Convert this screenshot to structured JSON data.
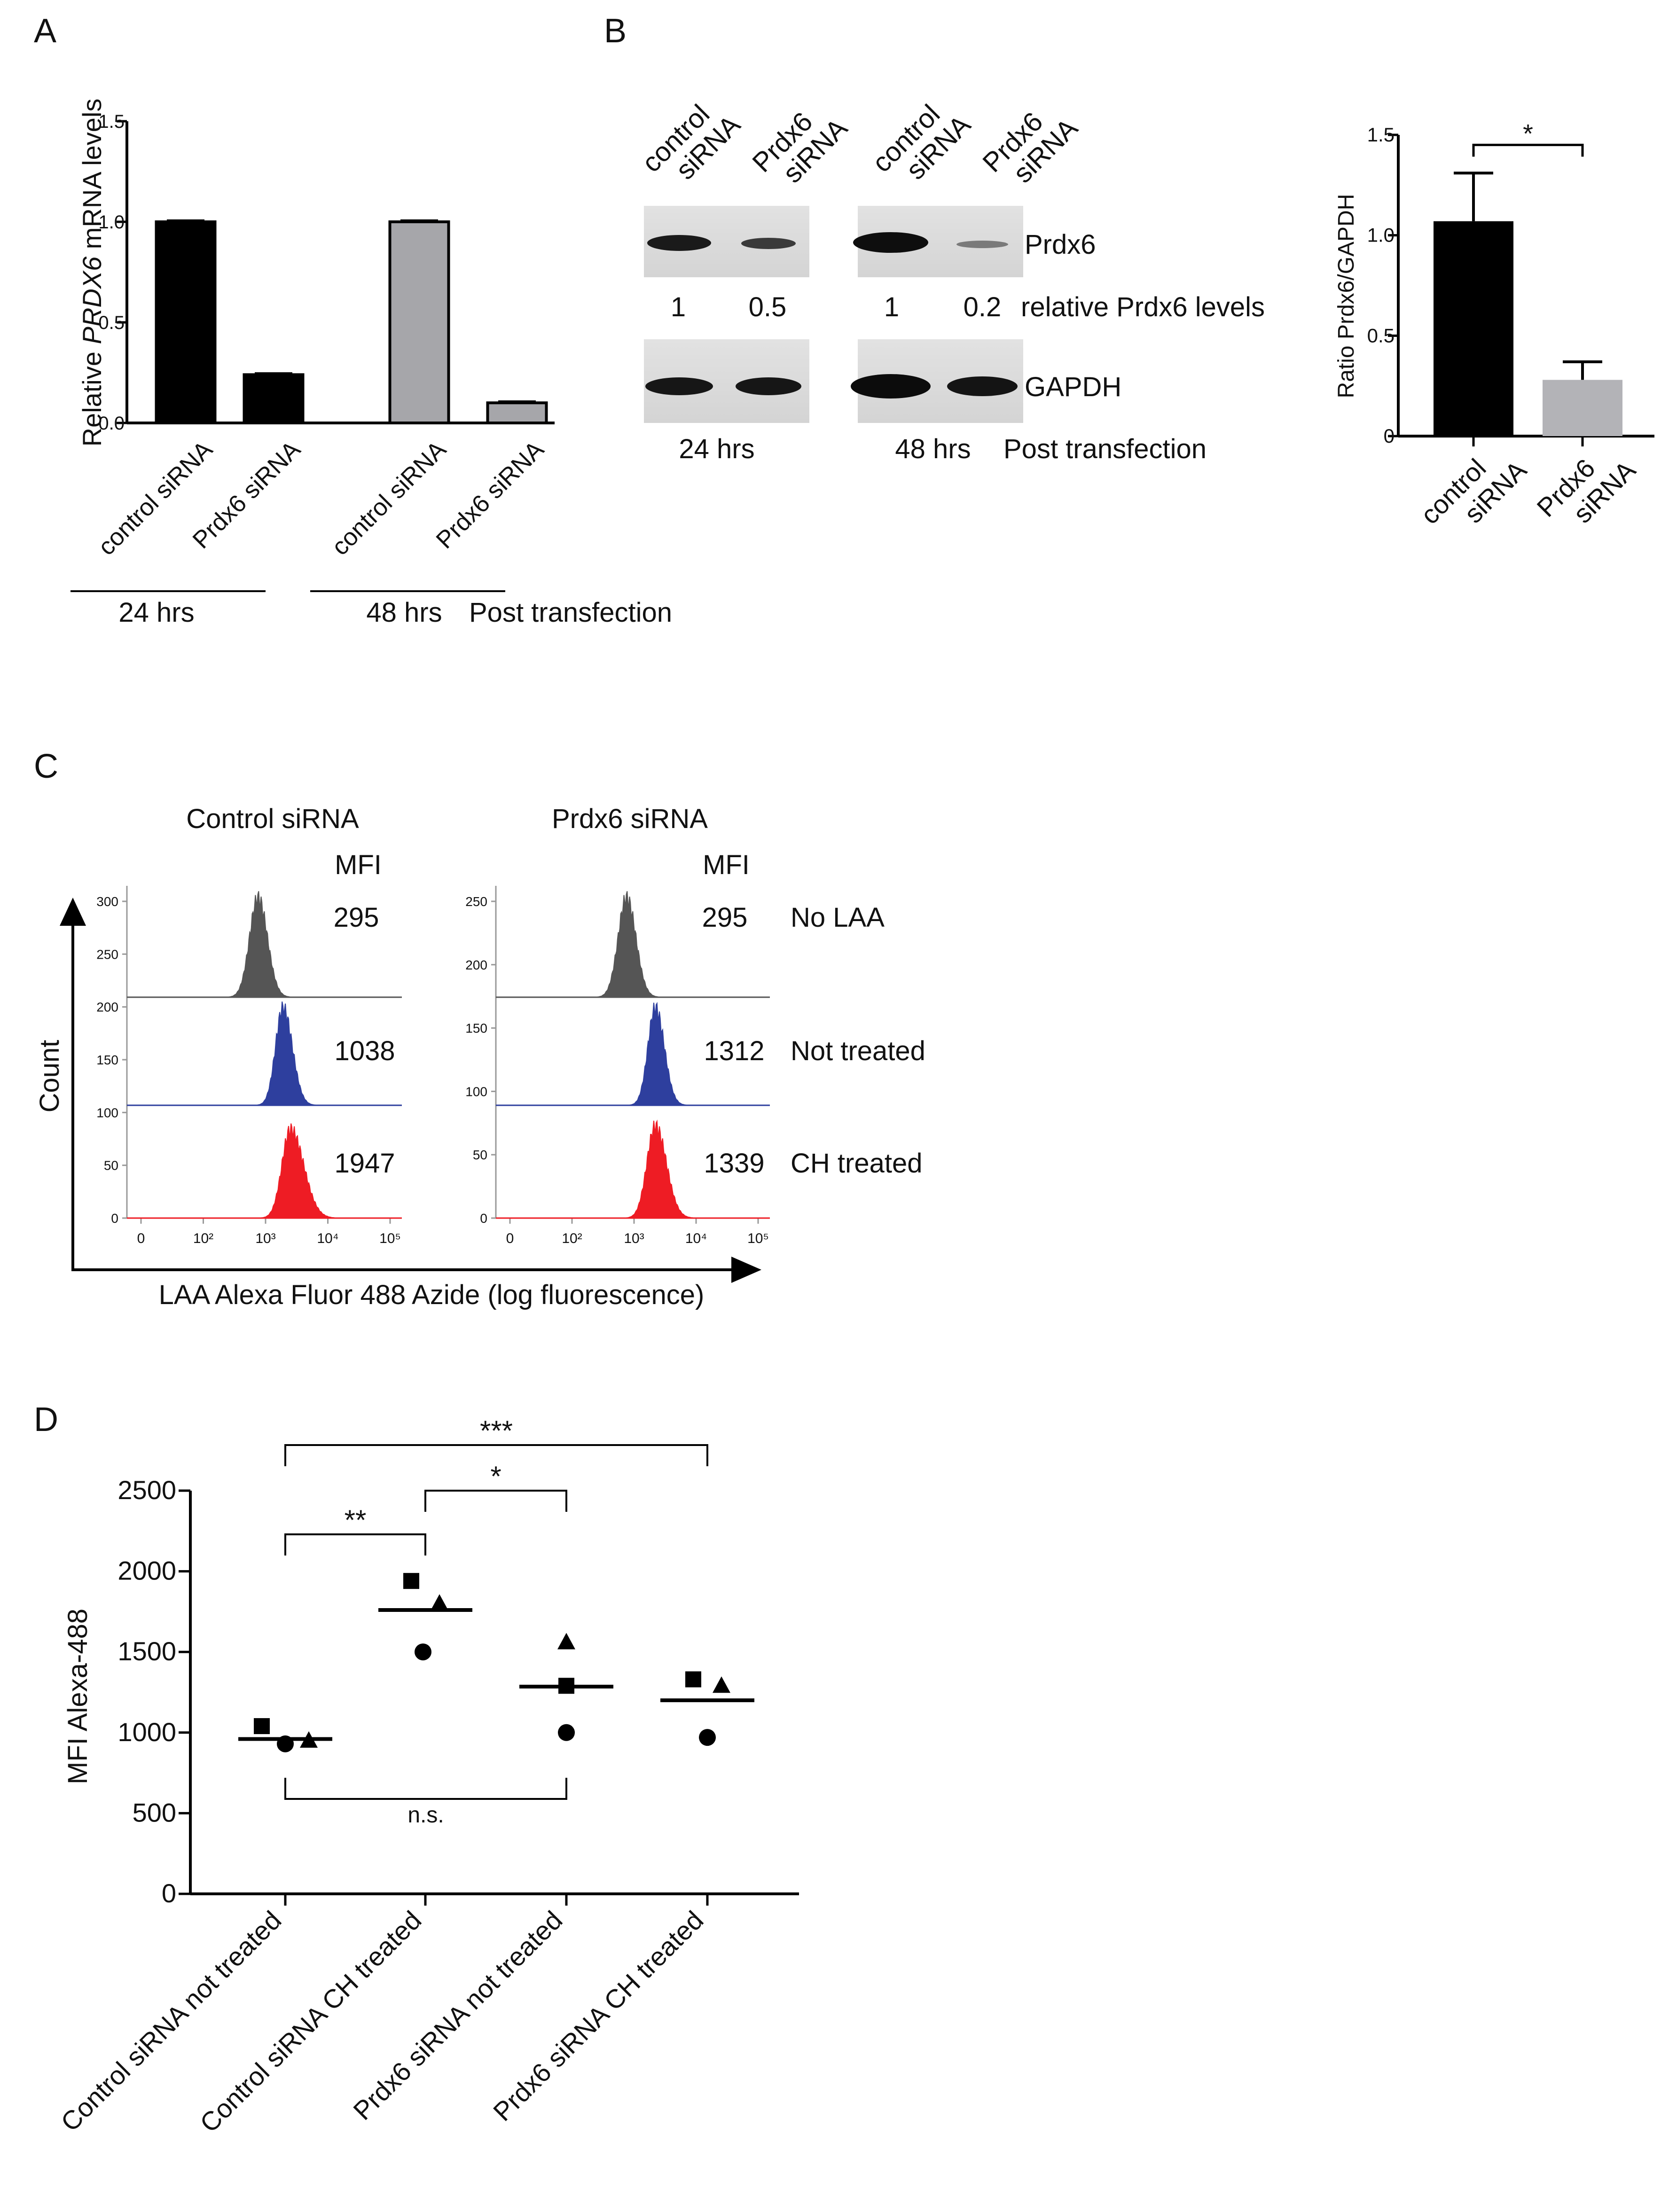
{
  "panels": {
    "a": "A",
    "b": "B",
    "c": "C",
    "d": "D"
  },
  "panel_a": {
    "ylabel_pre": "Relative ",
    "ylabel_gene": "PRDX6",
    "ylabel_post": " mRNA levels",
    "group1": "24 hrs",
    "group2": "48 hrs",
    "post": "Post transfection"
  },
  "panel_b": {
    "lanes": [
      {
        "l1": "control",
        "l2": "siRNA"
      },
      {
        "l1": "Prdx6",
        "l2": "siRNA"
      },
      {
        "l1": "control",
        "l2": "siRNA"
      },
      {
        "l1": "Prdx6",
        "l2": "siRNA"
      }
    ],
    "prdx6_label": "Prdx6",
    "gapdh_label": "GAPDH",
    "relative": [
      "1",
      "0.5",
      "1",
      "0.2"
    ],
    "relative_label": "relative Prdx6 levels",
    "time1": "24 hrs",
    "time2": "48 hrs",
    "post": "Post transfection"
  },
  "panel_c": {
    "titles": [
      "Control siRNA",
      "Prdx6 siRNA"
    ],
    "mfi_label": "MFI",
    "mfi_control": [
      "295",
      "1038",
      "1947"
    ],
    "mfi_prdx6": [
      "295",
      "1312",
      "1339"
    ],
    "row_labels": [
      "No LAA",
      "Not treated",
      "CH treated"
    ],
    "ylabel": "Count",
    "xlabel": "LAA Alexa Fluor 488 Azide (log fluorescence)",
    "left_yticks": [
      "300",
      "250",
      "200",
      "150",
      "100",
      "50",
      "0"
    ],
    "right_yticks": [
      "250",
      "200",
      "150",
      "100",
      "50",
      "0"
    ],
    "xticks": [
      "0",
      "10²",
      "10³",
      "10⁴",
      "10⁵"
    ],
    "colors": {
      "no_laa": "#555555",
      "not_treated": "#2e3f9e",
      "ch_treated": "#ee1c24"
    }
  },
  "chart_data": [
    {
      "type": "bar",
      "id": "A",
      "ylabel": "Relative PRDX6 mRNA levels",
      "categories": [
        "control siRNA",
        "Prdx6 siRNA",
        "control siRNA",
        "Prdx6 siRNA"
      ],
      "groups": [
        "24 hrs",
        "24 hrs",
        "48 hrs",
        "48 hrs"
      ],
      "values": [
        1.0,
        0.24,
        1.0,
        0.1
      ],
      "errors": [
        0.005,
        0.005,
        0.005,
        0.005
      ],
      "colors": [
        "#000000",
        "#000000",
        "#a6a6aa",
        "#a6a6aa"
      ],
      "ylim": [
        0,
        1.5
      ],
      "yticks": [
        "0.0",
        "0.5",
        "1.0",
        "1.5"
      ]
    },
    {
      "type": "bar",
      "id": "B-right",
      "ylabel": "Ratio Prdx6/GAPDH",
      "categories": [
        "control siRNA",
        "Prdx6 siRNA"
      ],
      "values": [
        1.07,
        0.28
      ],
      "errors": [
        0.24,
        0.09
      ],
      "colors": [
        "#000000",
        "#b3b3b7"
      ],
      "ylim": [
        0,
        1.5
      ],
      "yticks": [
        "0",
        "0.5",
        "1.0",
        "1.5"
      ],
      "significance": "*"
    },
    {
      "type": "scatter",
      "id": "D",
      "ylabel": "MFI Alexa-488",
      "categories": [
        "Control siRNA not treated",
        "Control siRNA CH treated",
        "Prdx6 siRNA not treated",
        "Prdx6 siRNA CH treated"
      ],
      "series": [
        {
          "name": "square",
          "values": [
            1040,
            1940,
            1290,
            1330
          ]
        },
        {
          "name": "circle",
          "values": [
            930,
            1500,
            1000,
            970
          ]
        },
        {
          "name": "triangle",
          "values": [
            950,
            1800,
            1560,
            1290
          ]
        }
      ],
      "means": [
        960,
        1760,
        1285,
        1200
      ],
      "ylim": [
        0,
        2500
      ],
      "yticks": [
        "0",
        "500",
        "1000",
        "1500",
        "2000",
        "2500"
      ],
      "significance": [
        {
          "from": 0,
          "to": 1,
          "label": "**"
        },
        {
          "from": 1,
          "to": 2,
          "label": "*"
        },
        {
          "from": 0,
          "to": 3,
          "label": "***"
        },
        {
          "from": 0,
          "to": 2,
          "label": "n.s."
        }
      ]
    }
  ]
}
